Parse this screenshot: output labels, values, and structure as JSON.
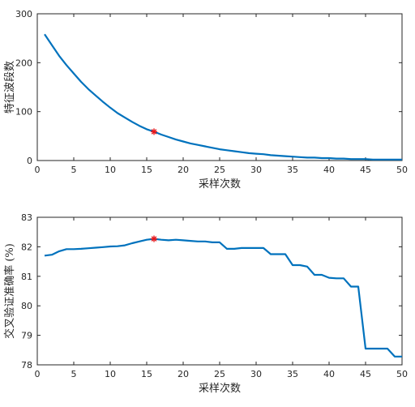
{
  "colors": {
    "line": "#0072BD",
    "marker": "#E8191C",
    "axis": "#262626"
  },
  "chart_data": [
    {
      "type": "line",
      "xlabel": "采样次数",
      "ylabel": "特征波段数",
      "xlim": [
        0,
        50
      ],
      "ylim": [
        0,
        300
      ],
      "xticks": [
        0,
        5,
        10,
        15,
        20,
        25,
        30,
        35,
        40,
        45,
        50
      ],
      "yticks": [
        0,
        100,
        200,
        300
      ],
      "grid": false,
      "x": [
        1,
        2,
        3,
        4,
        5,
        6,
        7,
        8,
        9,
        10,
        11,
        12,
        13,
        14,
        15,
        16,
        17,
        18,
        19,
        20,
        21,
        22,
        23,
        24,
        25,
        26,
        27,
        28,
        29,
        30,
        31,
        32,
        33,
        34,
        35,
        36,
        37,
        38,
        39,
        40,
        41,
        42,
        43,
        44,
        45,
        46,
        47,
        48,
        49,
        50
      ],
      "y": [
        258,
        236,
        214,
        195,
        178,
        161,
        146,
        133,
        120,
        108,
        97,
        88,
        79,
        71,
        64,
        59,
        53,
        48,
        43,
        39,
        35,
        32,
        29,
        26,
        23,
        21,
        19,
        17,
        15,
        14,
        13,
        11,
        10,
        9,
        8,
        7,
        6,
        6,
        5,
        5,
        4,
        4,
        3,
        3,
        3,
        2,
        2,
        2,
        2,
        2
      ],
      "marker": {
        "x": 16,
        "y": 59,
        "symbol": "asterisk"
      }
    },
    {
      "type": "line",
      "xlabel": "采样次数",
      "ylabel": "交叉验证准确率 (%)",
      "xlim": [
        0,
        50
      ],
      "ylim": [
        78,
        83
      ],
      "xticks": [
        0,
        5,
        10,
        15,
        20,
        25,
        30,
        35,
        40,
        45,
        50
      ],
      "yticks": [
        78,
        79,
        80,
        81,
        82,
        83
      ],
      "grid": false,
      "x": [
        1,
        2,
        3,
        4,
        5,
        6,
        7,
        8,
        9,
        10,
        11,
        12,
        13,
        14,
        15,
        16,
        17,
        18,
        19,
        20,
        21,
        22,
        23,
        24,
        25,
        26,
        27,
        28,
        29,
        30,
        31,
        32,
        33,
        34,
        35,
        36,
        37,
        38,
        39,
        40,
        41,
        42,
        43,
        44,
        45,
        46,
        47,
        48,
        49,
        50
      ],
      "y": [
        81.7,
        81.73,
        81.85,
        81.92,
        81.92,
        81.93,
        81.95,
        81.97,
        81.99,
        82.01,
        82.02,
        82.05,
        82.12,
        82.18,
        82.24,
        82.27,
        82.24,
        82.22,
        82.24,
        82.22,
        82.2,
        82.18,
        82.18,
        82.15,
        82.15,
        81.93,
        81.93,
        81.96,
        81.96,
        81.96,
        81.96,
        81.75,
        81.75,
        81.75,
        81.38,
        81.38,
        81.33,
        81.05,
        81.05,
        80.95,
        80.93,
        80.93,
        80.65,
        80.65,
        78.55,
        78.55,
        78.55,
        78.55,
        78.28,
        78.28
      ],
      "marker": {
        "x": 16,
        "y": 82.27,
        "symbol": "asterisk"
      }
    }
  ]
}
